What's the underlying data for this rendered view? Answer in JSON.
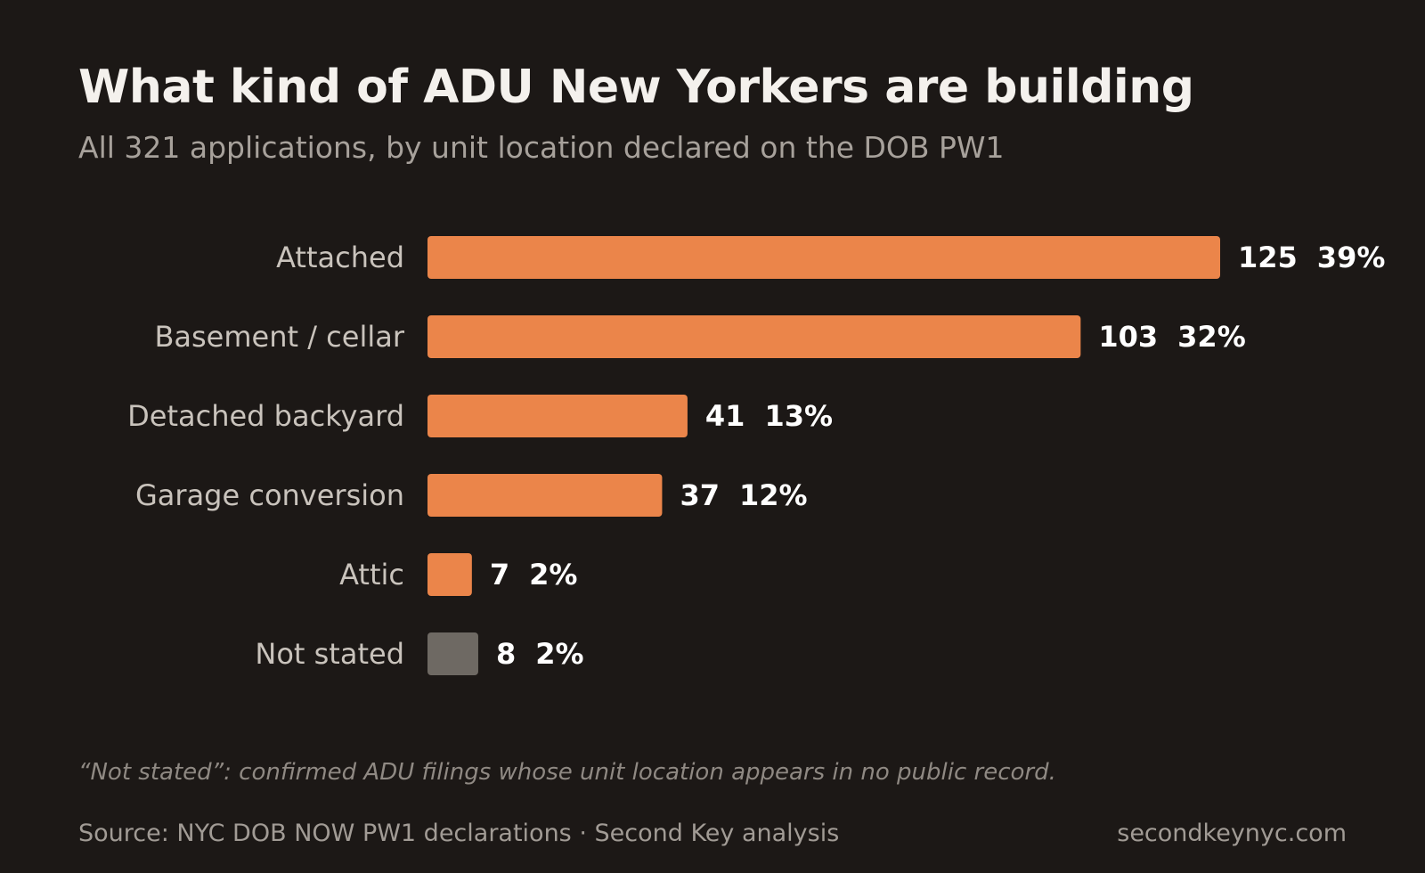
{
  "header": {
    "title": "What kind of ADU New Yorkers are building",
    "subtitle": "All 321 applications, by unit location declared on the DOB PW1"
  },
  "chart_data": {
    "type": "bar",
    "orientation": "horizontal",
    "categories": [
      "Attached",
      "Basement / cellar",
      "Detached backyard",
      "Garage conversion",
      "Attic",
      "Not stated"
    ],
    "values": [
      125,
      103,
      41,
      37,
      7,
      8
    ],
    "percent_labels": [
      "39%",
      "32%",
      "13%",
      "12%",
      "2%",
      "2%"
    ],
    "colors": [
      "#eb854a",
      "#eb854a",
      "#eb854a",
      "#eb854a",
      "#eb854a",
      "#6e6963"
    ],
    "xlim": [
      0,
      125
    ],
    "grid": false,
    "legend": "none",
    "title": "What kind of ADU New Yorkers are building",
    "xlabel": "",
    "ylabel": ""
  },
  "footer": {
    "note": "“Not stated”: confirmed ADU filings whose unit location appears in no public record.",
    "source": "Source: NYC DOB NOW PW1 declarations · Second Key analysis",
    "site": "secondkeynyc.com"
  },
  "colors": {
    "background": "#1c1816",
    "bar": "#eb854a",
    "bar_muted": "#6e6963",
    "title": "#f4f1ed",
    "subtitle": "#a7a19b"
  }
}
